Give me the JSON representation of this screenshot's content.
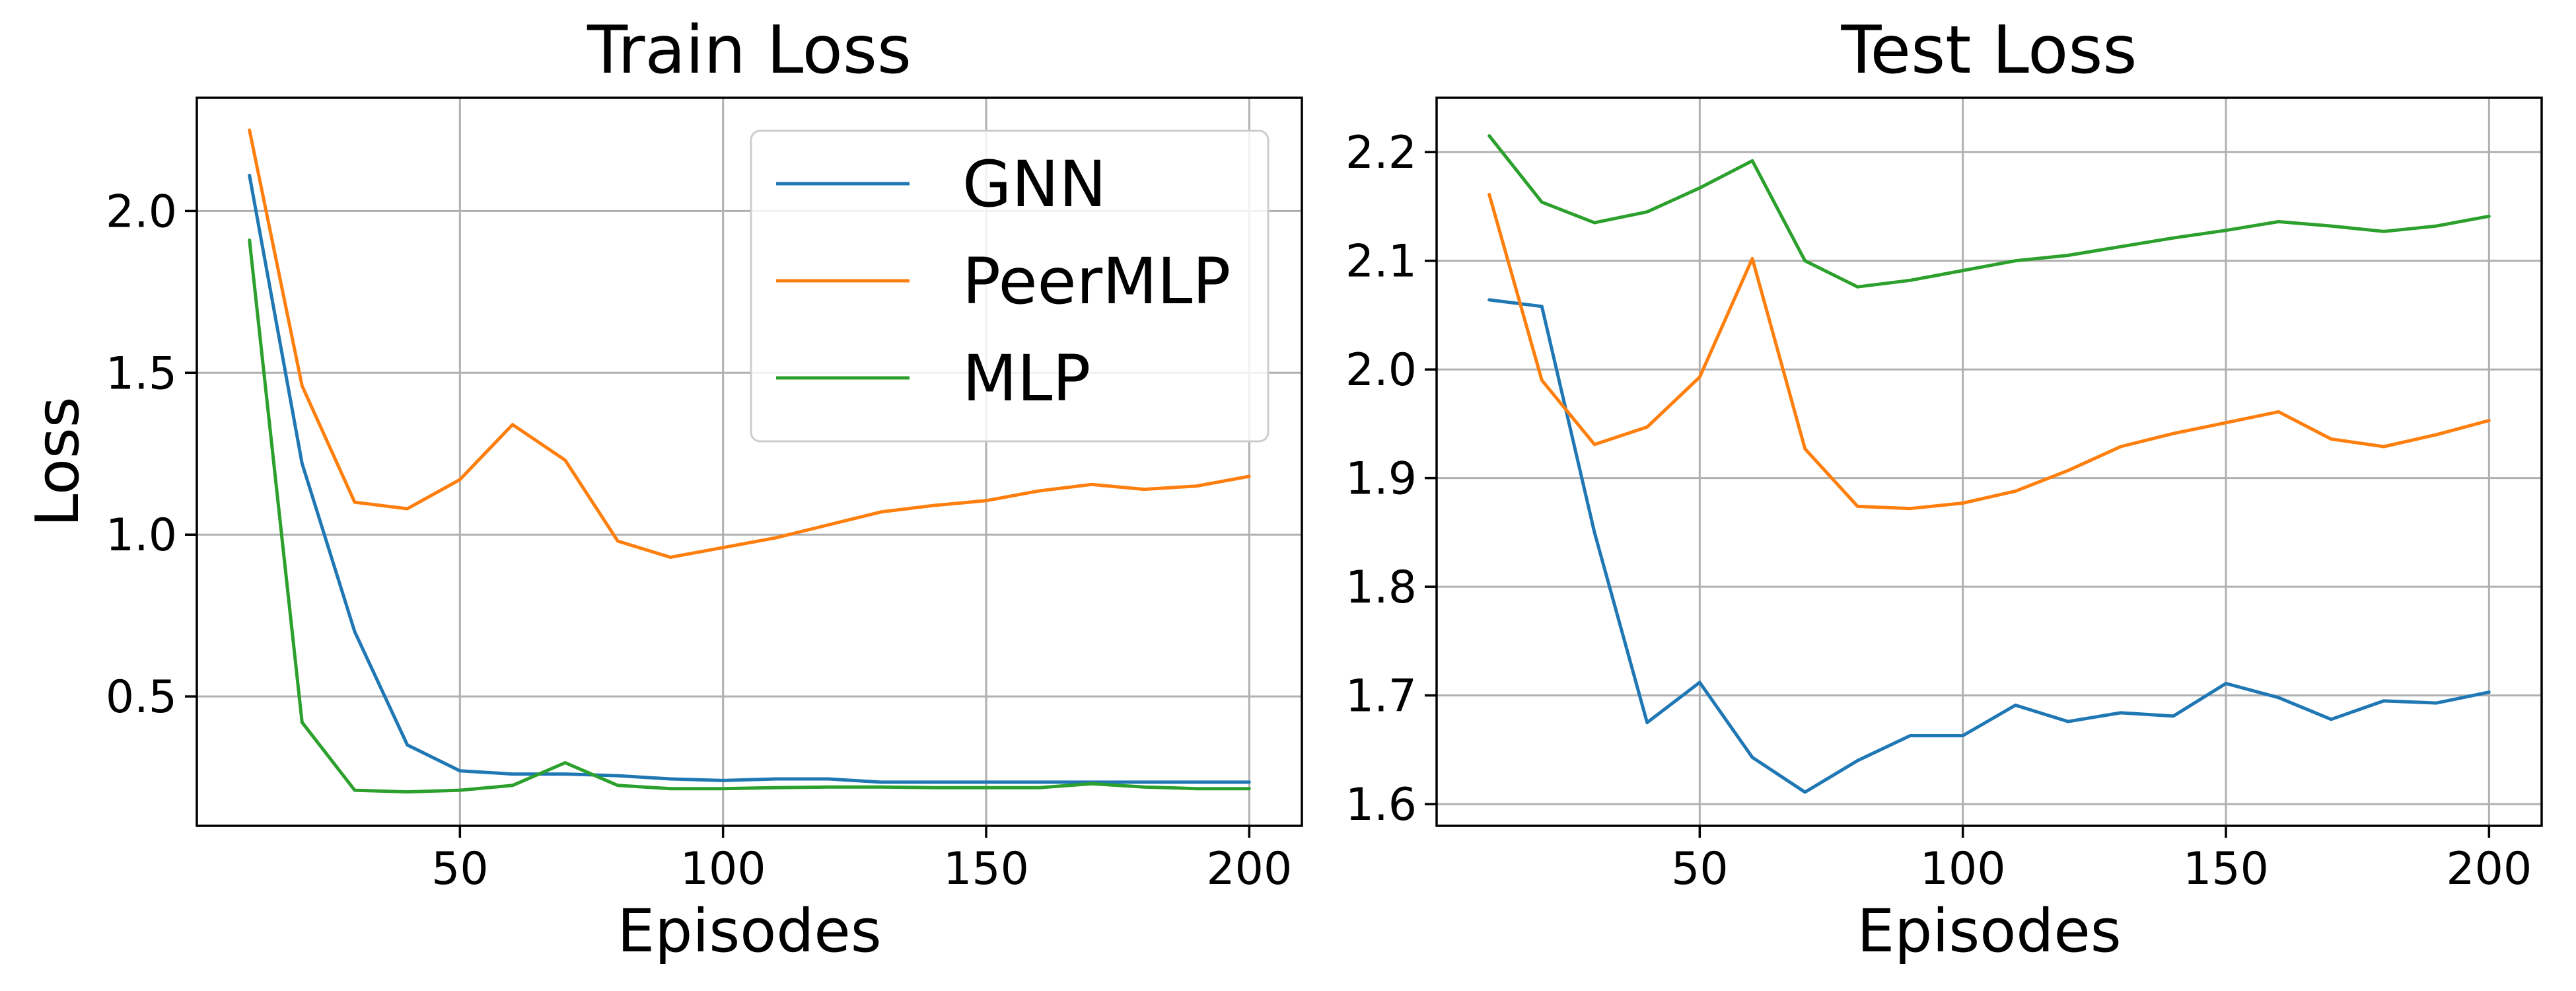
{
  "chart_data": [
    {
      "type": "line",
      "title": "Train Loss",
      "xlabel": "Episodes",
      "ylabel": "Loss",
      "xlim": [
        0,
        210
      ],
      "ylim": [
        0.1,
        2.35
      ],
      "xticks": [
        50,
        100,
        150,
        200
      ],
      "yticks": [
        0.5,
        1.0,
        1.5,
        2.0
      ],
      "ytick_labels": [
        "0.5",
        "1.0",
        "1.5",
        "2.0"
      ],
      "grid": true,
      "legend": "top-right",
      "x": [
        10,
        20,
        30,
        40,
        50,
        60,
        70,
        80,
        90,
        100,
        110,
        120,
        130,
        140,
        150,
        160,
        170,
        180,
        190,
        200
      ],
      "series": [
        {
          "name": "GNN",
          "color": "#1f77b4",
          "values": [
            2.11,
            1.22,
            0.7,
            0.35,
            0.27,
            0.26,
            0.26,
            0.255,
            0.245,
            0.24,
            0.245,
            0.245,
            0.235,
            0.235,
            0.235,
            0.235,
            0.235,
            0.235,
            0.235,
            0.235
          ]
        },
        {
          "name": "PeerMLP",
          "color": "#ff7f0e",
          "values": [
            2.25,
            1.46,
            1.1,
            1.08,
            1.17,
            1.34,
            1.23,
            0.98,
            0.93,
            0.96,
            0.99,
            1.03,
            1.07,
            1.09,
            1.105,
            1.135,
            1.155,
            1.14,
            1.15,
            1.18
          ]
        },
        {
          "name": "MLP",
          "color": "#2ca02c",
          "values": [
            1.91,
            0.42,
            0.21,
            0.205,
            0.21,
            0.225,
            0.295,
            0.225,
            0.215,
            0.215,
            0.218,
            0.22,
            0.22,
            0.218,
            0.218,
            0.218,
            0.23,
            0.22,
            0.215,
            0.215
          ]
        }
      ]
    },
    {
      "type": "line",
      "title": "Test Loss",
      "xlabel": "Episodes",
      "ylabel": "",
      "xlim": [
        0,
        210
      ],
      "ylim": [
        1.58,
        2.25
      ],
      "xticks": [
        50,
        100,
        150,
        200
      ],
      "yticks": [
        1.6,
        1.7,
        1.8,
        1.9,
        2.0,
        2.1,
        2.2
      ],
      "ytick_labels": [
        "1.6",
        "1.7",
        "1.8",
        "1.9",
        "2.0",
        "2.1",
        "2.2"
      ],
      "grid": true,
      "x": [
        10,
        20,
        30,
        40,
        50,
        60,
        70,
        80,
        90,
        100,
        110,
        120,
        130,
        140,
        150,
        160,
        170,
        180,
        190,
        200
      ],
      "series": [
        {
          "name": "GNN",
          "color": "#1f77b4",
          "values": [
            2.064,
            2.058,
            1.85,
            1.675,
            1.712,
            1.643,
            1.611,
            1.64,
            1.663,
            1.663,
            1.691,
            1.676,
            1.684,
            1.681,
            1.711,
            1.698,
            1.678,
            1.695,
            1.693,
            1.703
          ]
        },
        {
          "name": "PeerMLP",
          "color": "#ff7f0e",
          "values": [
            2.161,
            1.99,
            1.931,
            1.947,
            1.993,
            2.102,
            1.927,
            1.874,
            1.872,
            1.877,
            1.888,
            1.907,
            1.929,
            1.941,
            1.951,
            1.961,
            1.936,
            1.929,
            1.94,
            1.953
          ]
        },
        {
          "name": "MLP",
          "color": "#2ca02c",
          "values": [
            2.215,
            2.154,
            2.135,
            2.145,
            2.167,
            2.192,
            2.1,
            2.076,
            2.082,
            2.091,
            2.1,
            2.105,
            2.113,
            2.121,
            2.128,
            2.136,
            2.132,
            2.127,
            2.132,
            2.141
          ]
        }
      ]
    }
  ]
}
